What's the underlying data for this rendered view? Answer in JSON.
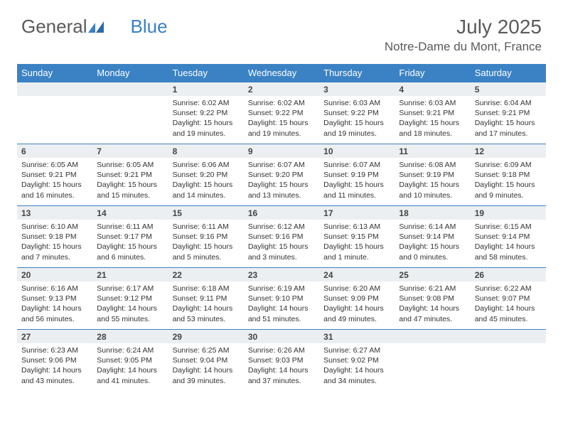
{
  "logo": {
    "text_gray": "General",
    "text_blue": "Blue"
  },
  "title": "July 2025",
  "location": "Notre-Dame du Mont, France",
  "colors": {
    "header_bg": "#3b82c4",
    "header_text": "#ffffff",
    "daynum_bg": "#eceff1",
    "cell_text": "#333333",
    "page_bg": "#ffffff",
    "title_color": "#5a5a5a",
    "rule_color": "#3b82c4"
  },
  "fonts": {
    "title_size_pt": 21,
    "location_size_pt": 13,
    "dayheader_size_pt": 10,
    "daynum_size_pt": 9,
    "body_size_pt": 8
  },
  "day_names": [
    "Sunday",
    "Monday",
    "Tuesday",
    "Wednesday",
    "Thursday",
    "Friday",
    "Saturday"
  ],
  "weeks": [
    [
      null,
      null,
      {
        "n": "1",
        "sunrise": "6:02 AM",
        "sunset": "9:22 PM",
        "daylight": "15 hours and 19 minutes."
      },
      {
        "n": "2",
        "sunrise": "6:02 AM",
        "sunset": "9:22 PM",
        "daylight": "15 hours and 19 minutes."
      },
      {
        "n": "3",
        "sunrise": "6:03 AM",
        "sunset": "9:22 PM",
        "daylight": "15 hours and 19 minutes."
      },
      {
        "n": "4",
        "sunrise": "6:03 AM",
        "sunset": "9:21 PM",
        "daylight": "15 hours and 18 minutes."
      },
      {
        "n": "5",
        "sunrise": "6:04 AM",
        "sunset": "9:21 PM",
        "daylight": "15 hours and 17 minutes."
      }
    ],
    [
      {
        "n": "6",
        "sunrise": "6:05 AM",
        "sunset": "9:21 PM",
        "daylight": "15 hours and 16 minutes."
      },
      {
        "n": "7",
        "sunrise": "6:05 AM",
        "sunset": "9:21 PM",
        "daylight": "15 hours and 15 minutes."
      },
      {
        "n": "8",
        "sunrise": "6:06 AM",
        "sunset": "9:20 PM",
        "daylight": "15 hours and 14 minutes."
      },
      {
        "n": "9",
        "sunrise": "6:07 AM",
        "sunset": "9:20 PM",
        "daylight": "15 hours and 13 minutes."
      },
      {
        "n": "10",
        "sunrise": "6:07 AM",
        "sunset": "9:19 PM",
        "daylight": "15 hours and 11 minutes."
      },
      {
        "n": "11",
        "sunrise": "6:08 AM",
        "sunset": "9:19 PM",
        "daylight": "15 hours and 10 minutes."
      },
      {
        "n": "12",
        "sunrise": "6:09 AM",
        "sunset": "9:18 PM",
        "daylight": "15 hours and 9 minutes."
      }
    ],
    [
      {
        "n": "13",
        "sunrise": "6:10 AM",
        "sunset": "9:18 PM",
        "daylight": "15 hours and 7 minutes."
      },
      {
        "n": "14",
        "sunrise": "6:11 AM",
        "sunset": "9:17 PM",
        "daylight": "15 hours and 6 minutes."
      },
      {
        "n": "15",
        "sunrise": "6:11 AM",
        "sunset": "9:16 PM",
        "daylight": "15 hours and 5 minutes."
      },
      {
        "n": "16",
        "sunrise": "6:12 AM",
        "sunset": "9:16 PM",
        "daylight": "15 hours and 3 minutes."
      },
      {
        "n": "17",
        "sunrise": "6:13 AM",
        "sunset": "9:15 PM",
        "daylight": "15 hours and 1 minute."
      },
      {
        "n": "18",
        "sunrise": "6:14 AM",
        "sunset": "9:14 PM",
        "daylight": "15 hours and 0 minutes."
      },
      {
        "n": "19",
        "sunrise": "6:15 AM",
        "sunset": "9:14 PM",
        "daylight": "14 hours and 58 minutes."
      }
    ],
    [
      {
        "n": "20",
        "sunrise": "6:16 AM",
        "sunset": "9:13 PM",
        "daylight": "14 hours and 56 minutes."
      },
      {
        "n": "21",
        "sunrise": "6:17 AM",
        "sunset": "9:12 PM",
        "daylight": "14 hours and 55 minutes."
      },
      {
        "n": "22",
        "sunrise": "6:18 AM",
        "sunset": "9:11 PM",
        "daylight": "14 hours and 53 minutes."
      },
      {
        "n": "23",
        "sunrise": "6:19 AM",
        "sunset": "9:10 PM",
        "daylight": "14 hours and 51 minutes."
      },
      {
        "n": "24",
        "sunrise": "6:20 AM",
        "sunset": "9:09 PM",
        "daylight": "14 hours and 49 minutes."
      },
      {
        "n": "25",
        "sunrise": "6:21 AM",
        "sunset": "9:08 PM",
        "daylight": "14 hours and 47 minutes."
      },
      {
        "n": "26",
        "sunrise": "6:22 AM",
        "sunset": "9:07 PM",
        "daylight": "14 hours and 45 minutes."
      }
    ],
    [
      {
        "n": "27",
        "sunrise": "6:23 AM",
        "sunset": "9:06 PM",
        "daylight": "14 hours and 43 minutes."
      },
      {
        "n": "28",
        "sunrise": "6:24 AM",
        "sunset": "9:05 PM",
        "daylight": "14 hours and 41 minutes."
      },
      {
        "n": "29",
        "sunrise": "6:25 AM",
        "sunset": "9:04 PM",
        "daylight": "14 hours and 39 minutes."
      },
      {
        "n": "30",
        "sunrise": "6:26 AM",
        "sunset": "9:03 PM",
        "daylight": "14 hours and 37 minutes."
      },
      {
        "n": "31",
        "sunrise": "6:27 AM",
        "sunset": "9:02 PM",
        "daylight": "14 hours and 34 minutes."
      },
      null,
      null
    ]
  ],
  "labels": {
    "sunrise": "Sunrise:",
    "sunset": "Sunset:",
    "daylight": "Daylight:"
  }
}
